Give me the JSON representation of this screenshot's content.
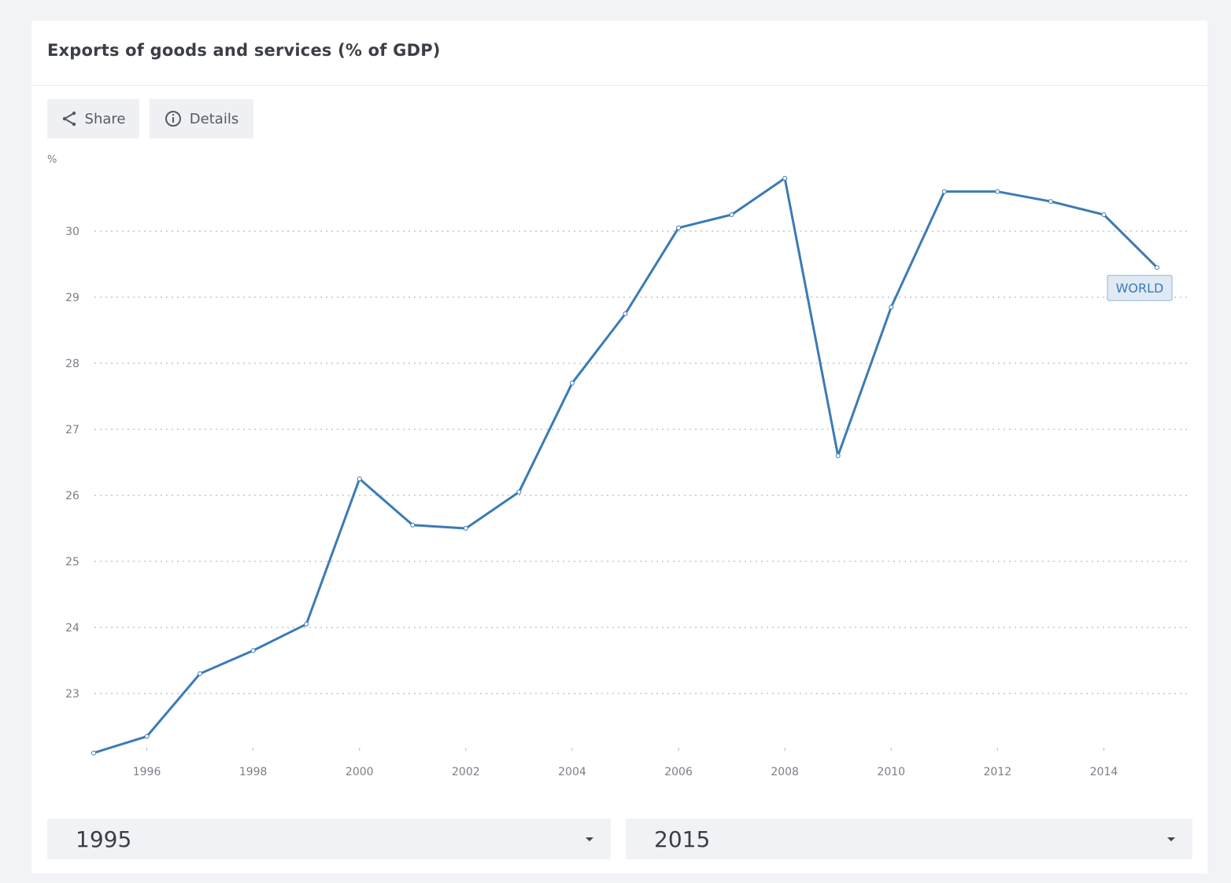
{
  "header": {
    "title": "Exports of goods and services (% of GDP)"
  },
  "toolbar": {
    "share_label": "Share",
    "details_label": "Details",
    "share_icon": "share-icon",
    "details_icon": "info-icon"
  },
  "chart_data": {
    "type": "line",
    "title": "Exports of goods and services (% of GDP)",
    "ylabel": "%",
    "xlabel": "",
    "ylim": [
      22,
      31
    ],
    "xlim": [
      1995,
      2015
    ],
    "yticks": [
      23,
      24,
      25,
      26,
      27,
      28,
      29,
      30
    ],
    "xticks": [
      1996,
      1998,
      2000,
      2002,
      2004,
      2006,
      2008,
      2010,
      2012,
      2014
    ],
    "grid": "horizontal dotted",
    "line_color": "#3b7bb4",
    "series": [
      {
        "name": "WORLD",
        "x": [
          1995,
          1996,
          1997,
          1998,
          1999,
          2000,
          2001,
          2002,
          2003,
          2004,
          2005,
          2006,
          2007,
          2008,
          2009,
          2010,
          2011,
          2012,
          2013,
          2014,
          2015
        ],
        "values": [
          22.1,
          22.35,
          23.3,
          23.65,
          24.05,
          26.25,
          25.55,
          25.5,
          26.05,
          27.7,
          28.75,
          30.05,
          30.25,
          30.8,
          26.6,
          28.85,
          30.6,
          30.6,
          30.45,
          30.25,
          29.45
        ]
      }
    ]
  },
  "range": {
    "start": "1995",
    "end": "2015"
  }
}
